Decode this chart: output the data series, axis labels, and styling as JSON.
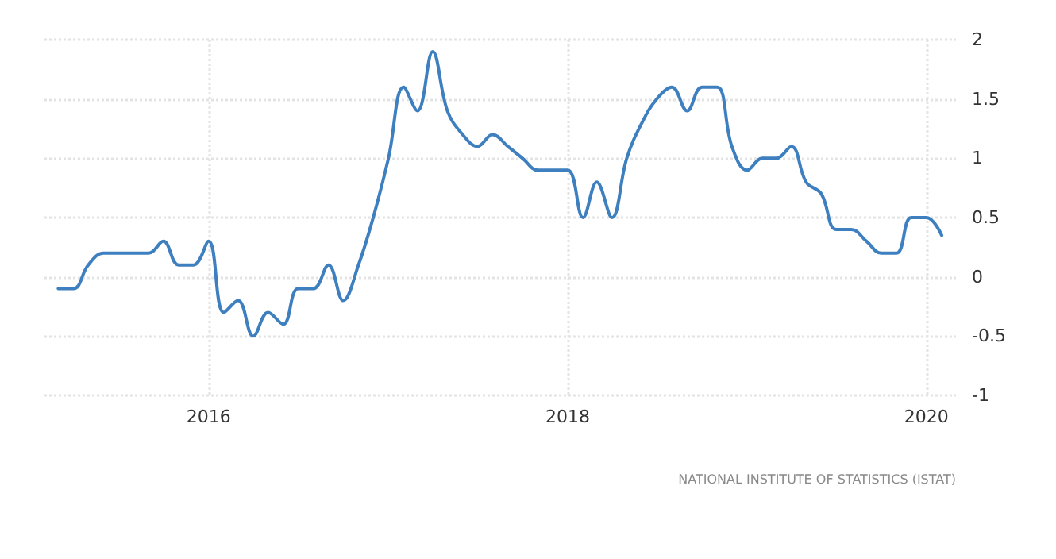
{
  "chart_data": {
    "type": "line",
    "x": [
      "2015-03",
      "2015-04",
      "2015-05",
      "2015-06",
      "2015-07",
      "2015-08",
      "2015-09",
      "2015-10",
      "2015-11",
      "2015-12",
      "2016-01",
      "2016-02",
      "2016-03",
      "2016-04",
      "2016-05",
      "2016-06",
      "2016-07",
      "2016-08",
      "2016-09",
      "2016-10",
      "2016-11",
      "2016-12",
      "2017-01",
      "2017-02",
      "2017-03",
      "2017-04",
      "2017-05",
      "2017-06",
      "2017-07",
      "2017-08",
      "2017-09",
      "2017-10",
      "2017-11",
      "2017-12",
      "2018-01",
      "2018-02",
      "2018-03",
      "2018-04",
      "2018-05",
      "2018-06",
      "2018-07",
      "2018-08",
      "2018-09",
      "2018-10",
      "2018-11",
      "2018-12",
      "2019-01",
      "2019-02",
      "2019-03",
      "2019-04",
      "2019-05",
      "2019-06",
      "2019-07",
      "2019-08",
      "2019-09",
      "2019-10",
      "2019-11",
      "2019-12",
      "2020-01",
      "2020-02"
    ],
    "series": [
      {
        "color": "#3e7fbf",
        "values": [
          -0.1,
          -0.1,
          0.1,
          0.2,
          0.2,
          0.2,
          0.2,
          0.3,
          0.1,
          0.1,
          0.3,
          -0.3,
          -0.2,
          -0.5,
          -0.3,
          -0.4,
          -0.1,
          -0.1,
          0.1,
          -0.2,
          0.1,
          0.5,
          1.0,
          1.6,
          1.4,
          1.9,
          1.4,
          1.2,
          1.1,
          1.2,
          1.1,
          1.0,
          0.9,
          0.9,
          0.9,
          0.5,
          0.8,
          0.5,
          1.0,
          1.3,
          1.5,
          1.6,
          1.4,
          1.6,
          1.6,
          1.1,
          0.9,
          1.0,
          1.0,
          1.1,
          0.8,
          0.7,
          0.4,
          0.4,
          0.3,
          0.2,
          0.2,
          0.5,
          0.5,
          0.35
        ]
      }
    ],
    "xlim": [
      "2015-02",
      "2020-03"
    ],
    "xticks": [
      {
        "value": "2016",
        "label": "2016"
      },
      {
        "value": "2018",
        "label": "2018"
      },
      {
        "value": "2020",
        "label": "2020"
      }
    ],
    "ylim": [
      -1,
      2
    ],
    "yticks": [
      -1,
      -0.5,
      0,
      0.5,
      1,
      1.5,
      2
    ],
    "grid": true,
    "marker": "none",
    "line_style": "solid",
    "annotations": [
      "NATIONAL INSTITUTE OF STATISTICS (ISTAT)"
    ]
  }
}
